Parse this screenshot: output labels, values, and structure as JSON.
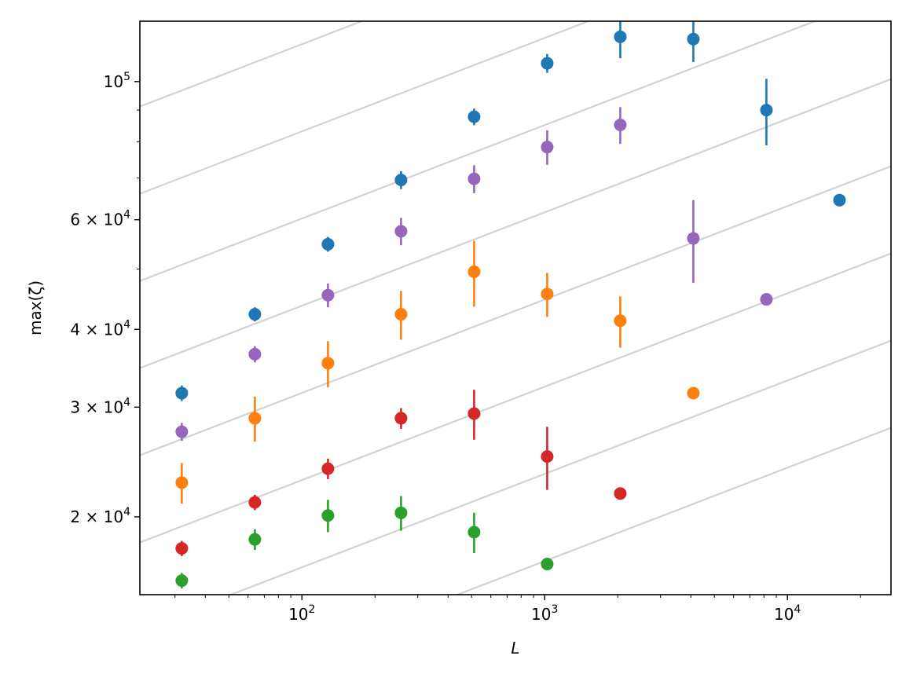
{
  "chart_data": {
    "type": "scatter",
    "title": "",
    "xlabel": "L",
    "ylabel": "max(ζ)",
    "xscale": "log",
    "yscale": "log",
    "xlim": [
      21.5,
      26700
    ],
    "ylim": [
      15000,
      125000
    ],
    "grid": false,
    "legend": "none",
    "error_bars": true,
    "x_ticks": [
      {
        "value": 100,
        "base": "10",
        "exp": "2"
      },
      {
        "value": 1000,
        "base": "10",
        "exp": "3"
      },
      {
        "value": 10000,
        "base": "10",
        "exp": "4"
      }
    ],
    "y_ticks": [
      {
        "value": 20000,
        "coef": "2 × ",
        "base": "10",
        "exp": "4"
      },
      {
        "value": 30000,
        "coef": "3 × ",
        "base": "10",
        "exp": "4"
      },
      {
        "value": 40000,
        "coef": "4 × ",
        "base": "10",
        "exp": "4"
      },
      {
        "value": 60000,
        "coef": "6 × ",
        "base": "10",
        "exp": "4"
      },
      {
        "value": 100000,
        "coef": "",
        "base": "10",
        "exp": "5"
      }
    ],
    "reference_lines": {
      "slope": 0.15,
      "color": "#d3d3d3",
      "log10_offsets": [
        4.08,
        4.22,
        4.36,
        4.5,
        4.64,
        4.78,
        4.92,
        5.06,
        5.2,
        5.34,
        5.48
      ]
    },
    "series": [
      {
        "color": "#1f77b4",
        "points": [
          {
            "x": 32,
            "y": 31600,
            "err": 900
          },
          {
            "x": 64,
            "y": 42300,
            "err": 1100
          },
          {
            "x": 128,
            "y": 54800,
            "err": 1500
          },
          {
            "x": 256,
            "y": 69500,
            "err": 2300
          },
          {
            "x": 512,
            "y": 87800,
            "err": 2700
          },
          {
            "x": 1024,
            "y": 107000,
            "err": 3700
          },
          {
            "x": 2048,
            "y": 118000,
            "err": 9000
          },
          {
            "x": 4096,
            "y": 117000,
            "err": 9500
          },
          {
            "x": 8192,
            "y": 90000,
            "err": 11000
          },
          {
            "x": 16384,
            "y": 64500,
            "err": 0
          }
        ]
      },
      {
        "color": "#9467bd",
        "points": [
          {
            "x": 32,
            "y": 27400,
            "err": 900
          },
          {
            "x": 64,
            "y": 36500,
            "err": 1100
          },
          {
            "x": 128,
            "y": 45400,
            "err": 2000
          },
          {
            "x": 256,
            "y": 57500,
            "err": 2900
          },
          {
            "x": 512,
            "y": 69800,
            "err": 3600
          },
          {
            "x": 1024,
            "y": 78500,
            "err": 5000
          },
          {
            "x": 2048,
            "y": 85200,
            "err": 5800
          },
          {
            "x": 4096,
            "y": 56000,
            "err": 8500
          },
          {
            "x": 8192,
            "y": 44700,
            "err": 0
          }
        ]
      },
      {
        "color": "#ff7f0e",
        "points": [
          {
            "x": 32,
            "y": 22700,
            "err": 1700
          },
          {
            "x": 64,
            "y": 28800,
            "err": 2400
          },
          {
            "x": 128,
            "y": 35300,
            "err": 3000
          },
          {
            "x": 256,
            "y": 42300,
            "err": 3800
          },
          {
            "x": 512,
            "y": 49500,
            "err": 6000
          },
          {
            "x": 1024,
            "y": 45600,
            "err": 3700
          },
          {
            "x": 2048,
            "y": 41300,
            "err": 3900
          },
          {
            "x": 4096,
            "y": 31600,
            "err": 0
          }
        ]
      },
      {
        "color": "#d62728",
        "points": [
          {
            "x": 32,
            "y": 17800,
            "err": 500
          },
          {
            "x": 64,
            "y": 21100,
            "err": 600
          },
          {
            "x": 128,
            "y": 23900,
            "err": 900
          },
          {
            "x": 256,
            "y": 28800,
            "err": 1100
          },
          {
            "x": 512,
            "y": 29300,
            "err": 2700
          },
          {
            "x": 1024,
            "y": 25000,
            "err": 2900
          },
          {
            "x": 2048,
            "y": 21800,
            "err": 0
          }
        ]
      },
      {
        "color": "#2ca02c",
        "points": [
          {
            "x": 32,
            "y": 15800,
            "err": 450
          },
          {
            "x": 64,
            "y": 18400,
            "err": 700
          },
          {
            "x": 128,
            "y": 20100,
            "err": 1200
          },
          {
            "x": 256,
            "y": 20300,
            "err": 1300
          },
          {
            "x": 512,
            "y": 18900,
            "err": 1400
          },
          {
            "x": 1024,
            "y": 16800,
            "err": 0
          }
        ]
      }
    ]
  }
}
